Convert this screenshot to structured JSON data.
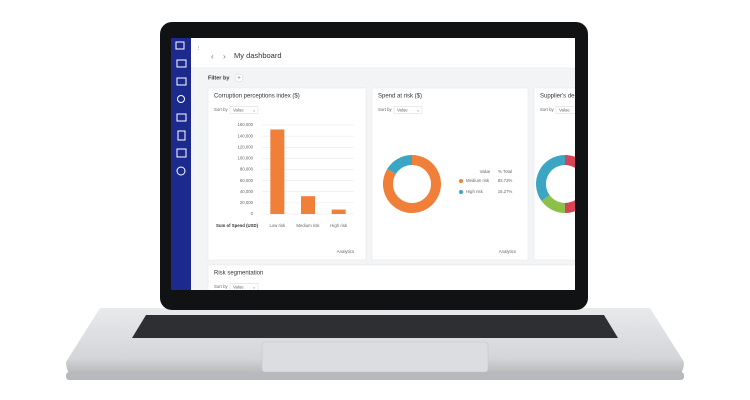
{
  "header": {
    "title": "My dashboard"
  },
  "filter": {
    "label": "Filter by",
    "add": "+"
  },
  "widgets": [
    {
      "title": "Corruption perceptions index ($)",
      "sort_label": "Sort by",
      "sort_value": "Value",
      "type": "bar",
      "y_title": "Sum of Spend (USD)",
      "categories": [
        "Low risk",
        "Medium risk",
        "High risk"
      ],
      "values": [
        152000,
        32000,
        8000
      ],
      "color": "#f07f3a",
      "ylim": [
        0,
        160000
      ],
      "yticks": [
        0,
        {
          "value": 20000,
          "label": "20,000"
        },
        {
          "value": 40000,
          "label": "40,000"
        },
        {
          "value": 60000,
          "label": "60,000"
        },
        {
          "value": 80000,
          "label": "80,000"
        },
        {
          "value": 100000,
          "label": "100,000"
        },
        {
          "value": 120000,
          "label": "120,000"
        },
        {
          "value": 140000,
          "label": "140,000"
        },
        {
          "value": 160000,
          "label": "160,000"
        }
      ],
      "grid": true,
      "link": "Analytics"
    },
    {
      "title": "Spend at risk ($)",
      "sort_label": "Sort by",
      "sort_value": "Value",
      "type": "donut",
      "legend_header": [
        "Value",
        "% Total"
      ],
      "categories": [
        "Medium risk",
        "High risk"
      ],
      "values": [
        83.73,
        16.27
      ],
      "value_labels": [
        "83.73%",
        "16.27%"
      ],
      "colors": [
        "#f07f3a",
        "#3aa6c4"
      ],
      "link": "Analytics"
    },
    {
      "title": "Supplier's de",
      "sort_label": "Sort by",
      "sort_value": "Value",
      "type": "donut",
      "values": [
        50,
        15,
        35
      ],
      "colors": [
        "#d64556",
        "#8cc04b",
        "#3aa6c4"
      ]
    }
  ],
  "bottom_widget": {
    "title": "Risk segmentation",
    "sort_label": "Sort by",
    "sort_value": "Value"
  }
}
